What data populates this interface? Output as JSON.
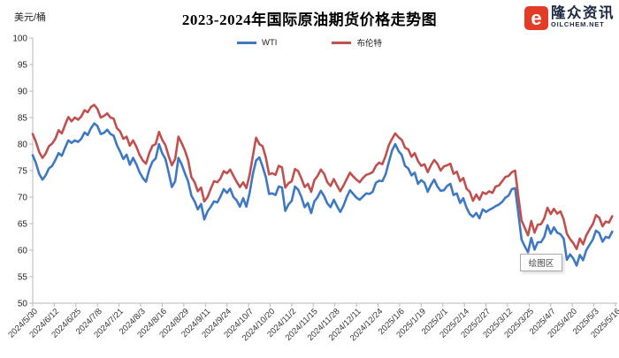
{
  "chart_data": {
    "type": "line",
    "title": "2023-2024年国际原油期货价格走势图",
    "unit": "美元/桶",
    "ylim": [
      50,
      100
    ],
    "yticks": [
      100,
      95,
      90,
      85,
      80,
      75,
      70,
      65,
      60,
      55,
      50
    ],
    "grid": false,
    "legend_position": "top-center",
    "axis_color": "#b7b7b7",
    "categories": [
      "2024/5/30",
      "2024/6/12",
      "2024/6/25",
      "2024/7/8",
      "2024/7/21",
      "2024/8/3",
      "2024/8/16",
      "2024/8/29",
      "2024/9/11",
      "2024/9/24",
      "2024/10/7",
      "2024/10/20",
      "2024/11/2",
      "2024/11/15",
      "2024/11/28",
      "2024/12/11",
      "2024/12/24",
      "2025/1/6",
      "2025/1/19",
      "2025/2/1",
      "2025/2/14",
      "2025/2/27",
      "2025/3/12",
      "2025/3/25",
      "2025/4/7",
      "2025/4/20",
      "2025/5/3",
      "2025/5/16"
    ],
    "x_start": 0,
    "x_step": 0.15,
    "series": [
      {
        "name": "WTI",
        "color": "#3e78c2",
        "values": [
          77.9,
          76.4,
          74.4,
          73.3,
          74.1,
          75.4,
          75.9,
          77.0,
          78.3,
          77.8,
          79.3,
          80.7,
          80.2,
          80.7,
          80.4,
          81.0,
          82.2,
          81.7,
          83.0,
          83.9,
          83.4,
          81.9,
          82.1,
          82.7,
          81.9,
          81.6,
          79.8,
          78.6,
          77.2,
          78.0,
          76.1,
          77.4,
          76.2,
          74.7,
          73.6,
          72.9,
          75.2,
          76.7,
          77.3,
          80.0,
          78.3,
          77.2,
          74.6,
          71.9,
          73.0,
          77.4,
          76.2,
          74.5,
          73.0,
          70.3,
          69.2,
          67.7,
          68.7,
          65.8,
          67.3,
          68.2,
          69.2,
          69.0,
          70.1,
          71.5,
          70.8,
          71.6,
          70.0,
          69.4,
          68.2,
          69.8,
          68.2,
          70.8,
          74.4,
          76.9,
          77.5,
          75.8,
          73.8,
          70.6,
          70.7,
          70.4,
          72.0,
          71.8,
          67.4,
          68.6,
          69.3,
          72.0,
          71.4,
          70.0,
          68.1,
          68.9,
          67.0,
          69.2,
          70.0,
          71.2,
          70.2,
          68.8,
          68.1,
          69.5,
          68.3,
          67.2,
          68.4,
          70.0,
          71.3,
          70.6,
          69.9,
          69.5,
          70.1,
          70.7,
          70.6,
          71.0,
          72.7,
          73.1,
          73.0,
          74.3,
          76.6,
          78.8,
          80.0,
          78.7,
          77.9,
          75.9,
          75.4,
          74.1,
          74.6,
          72.5,
          73.2,
          72.7,
          71.0,
          72.3,
          73.3,
          72.0,
          71.2,
          71.3,
          72.1,
          72.5,
          70.4,
          70.7,
          68.9,
          69.8,
          68.0,
          66.8,
          66.3,
          67.0,
          66.0,
          67.7,
          67.2,
          67.6,
          67.9,
          68.3,
          68.6,
          69.1,
          69.9,
          70.3,
          71.5,
          71.7,
          66.9,
          62.0,
          60.7,
          59.6,
          62.3,
          60.1,
          61.5,
          61.5,
          62.5,
          64.7,
          63.1,
          64.3,
          63.3,
          63.0,
          62.2,
          58.2,
          59.2,
          58.4,
          57.1,
          59.1,
          58.1,
          60.0,
          61.0,
          62.0,
          63.7,
          63.2,
          61.6,
          62.5,
          62.3,
          63.5
        ]
      },
      {
        "name": "布伦特",
        "color": "#c0504d",
        "values": [
          81.9,
          80.4,
          78.5,
          77.4,
          78.2,
          79.6,
          80.1,
          81.0,
          82.6,
          82.0,
          83.6,
          85.1,
          84.3,
          85.0,
          84.6,
          85.2,
          86.4,
          86.0,
          87.0,
          87.4,
          86.6,
          85.0,
          85.3,
          85.8,
          85.0,
          84.8,
          83.0,
          82.4,
          81.0,
          81.4,
          79.7,
          80.7,
          79.5,
          78.0,
          76.9,
          76.3,
          78.3,
          79.7,
          80.0,
          82.3,
          80.8,
          79.8,
          77.7,
          76.0,
          77.2,
          81.4,
          80.2,
          78.8,
          77.0,
          73.8,
          72.8,
          71.1,
          71.8,
          69.2,
          70.0,
          71.6,
          73.0,
          72.8,
          73.5,
          74.9,
          74.5,
          75.2,
          74.0,
          72.9,
          71.9,
          72.8,
          71.7,
          74.2,
          77.8,
          81.2,
          80.0,
          79.6,
          77.5,
          74.3,
          74.5,
          74.2,
          75.9,
          75.6,
          71.8,
          72.6,
          73.0,
          75.3,
          74.9,
          73.5,
          71.9,
          72.5,
          71.0,
          73.2,
          74.0,
          75.2,
          74.4,
          72.8,
          72.1,
          73.4,
          72.2,
          71.1,
          72.2,
          73.4,
          74.6,
          73.9,
          73.3,
          72.8,
          73.6,
          74.2,
          74.4,
          74.7,
          75.9,
          76.5,
          76.2,
          77.8,
          79.8,
          81.0,
          82.0,
          81.3,
          80.8,
          79.3,
          79.0,
          77.6,
          78.3,
          76.8,
          75.9,
          76.2,
          74.7,
          76.0,
          77.0,
          76.3,
          75.0,
          75.8,
          76.0,
          76.3,
          74.4,
          74.8,
          73.0,
          73.6,
          71.6,
          71.0,
          69.3,
          70.5,
          69.5,
          70.9,
          70.6,
          71.1,
          70.8,
          72.0,
          72.2,
          73.0,
          73.8,
          74.0,
          74.7,
          75.0,
          70.1,
          65.6,
          64.2,
          62.8,
          65.5,
          63.3,
          64.8,
          64.9,
          66.0,
          68.0,
          66.8,
          67.8,
          66.9,
          67.3,
          65.8,
          63.1,
          62.1,
          61.3,
          60.2,
          62.2,
          61.1,
          62.8,
          63.9,
          64.9,
          66.6,
          66.1,
          64.5,
          65.4,
          65.2,
          66.4
        ]
      }
    ]
  },
  "logo": {
    "glyph": "e",
    "name_text": "隆众资讯",
    "domain_text": "OILCHEM.NET",
    "icon_color": "#e23b26",
    "text_color": "#1d2b45"
  },
  "plot_area_tooltip": {
    "label": "绘图区"
  }
}
